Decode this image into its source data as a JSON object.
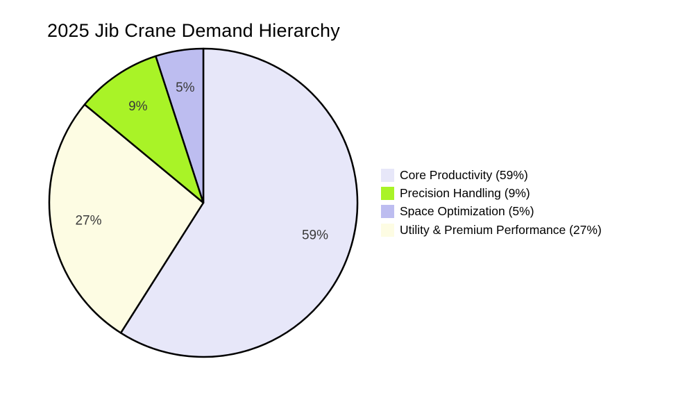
{
  "chart_data": {
    "type": "pie",
    "title": "2025 Jib Crane Demand Hierarchy",
    "slices": [
      {
        "label": "Core Productivity",
        "value": 59,
        "pct_label": "59%",
        "legend_label": "Core Productivity (59%)",
        "color": "#e7e7f9"
      },
      {
        "label": "Precision Handling",
        "value": 9,
        "pct_label": "9%",
        "legend_label": "Precision Handling (9%)",
        "color": "#a9f327"
      },
      {
        "label": "Space Optimization",
        "value": 5,
        "pct_label": "5%",
        "legend_label": "Space Optimization (5%)",
        "color": "#bdbdf0"
      },
      {
        "label": "Utility & Premium Performance",
        "value": 27,
        "pct_label": "27%",
        "legend_label": "Utility & Premium Performance (27%)",
        "color": "#fdfce3"
      }
    ],
    "clockwise_order_from_top": [
      "Core Productivity",
      "Utility & Premium Performance",
      "Precision Handling",
      "Space Optimization"
    ],
    "start_angle": "top",
    "direction": "clockwise",
    "wedge_edge_color": "#000000",
    "pct_label_color": "#3a3a3a",
    "legend_position": "center right",
    "background_color": "#ffffff"
  }
}
